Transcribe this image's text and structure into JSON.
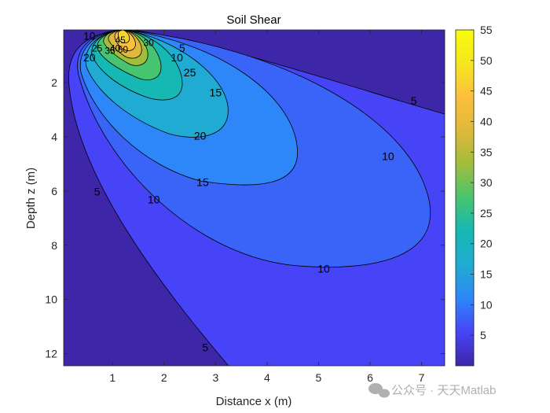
{
  "chart_data": {
    "type": "contour",
    "title": "Soil Shear",
    "xlabel": "Distance x (m)",
    "ylabel": "Depth z (m)",
    "xlim": [
      0.05,
      7.45
    ],
    "ylim": [
      12.45,
      0.05
    ],
    "y_direction": "reversed",
    "xticks": [
      1,
      2,
      3,
      4,
      5,
      6,
      7
    ],
    "yticks": [
      2,
      4,
      6,
      8,
      10,
      12
    ],
    "colorbar": {
      "ticks": [
        5,
        10,
        15,
        20,
        25,
        30,
        35,
        40,
        45,
        50,
        55
      ],
      "range": [
        0,
        55
      ],
      "colormap": "parula",
      "colors": [
        "#3e26a8",
        "#4743f7",
        "#2e87f8",
        "#1fabd2",
        "#15b8b2",
        "#47c470",
        "#a1bd3c",
        "#e0b83b",
        "#fcbf3c",
        "#f6e61e",
        "#f9fb0e"
      ]
    },
    "levels": [
      5,
      10,
      15,
      20,
      25,
      30,
      35,
      40,
      45,
      50
    ],
    "contour_labels": [
      {
        "text": "5",
        "x": 2.35,
        "z": 0.75
      },
      {
        "text": "5",
        "x": 6.85,
        "z": 2.7
      },
      {
        "text": "5",
        "x": 0.7,
        "z": 6.05
      },
      {
        "text": "5",
        "x": 2.8,
        "z": 11.8
      },
      {
        "text": "10",
        "x": 2.25,
        "z": 1.1
      },
      {
        "text": "10",
        "x": 6.35,
        "z": 4.75
      },
      {
        "text": "10",
        "x": 1.8,
        "z": 6.35
      },
      {
        "text": "10",
        "x": 5.1,
        "z": 8.9
      },
      {
        "text": "10",
        "x": 0.55,
        "z": 0.3
      },
      {
        "text": "15",
        "x": 3.0,
        "z": 2.4
      },
      {
        "text": "15",
        "x": 2.75,
        "z": 5.7
      },
      {
        "text": "20",
        "x": 2.7,
        "z": 4.0
      },
      {
        "text": "20",
        "x": 0.55,
        "z": 1.1
      },
      {
        "text": "25",
        "x": 2.5,
        "z": 1.65
      },
      {
        "text": "25",
        "x": 0.7,
        "z": 0.75
      },
      {
        "text": "30",
        "x": 1.7,
        "z": 0.55
      },
      {
        "text": "35",
        "x": 0.95,
        "z": 0.85
      },
      {
        "text": "40",
        "x": 1.05,
        "z": 0.75
      },
      {
        "text": "45",
        "x": 1.15,
        "z": 0.45
      },
      {
        "text": "50",
        "x": 1.2,
        "z": 0.8
      }
    ]
  },
  "watermark": "公众号 · 天天Matlab"
}
